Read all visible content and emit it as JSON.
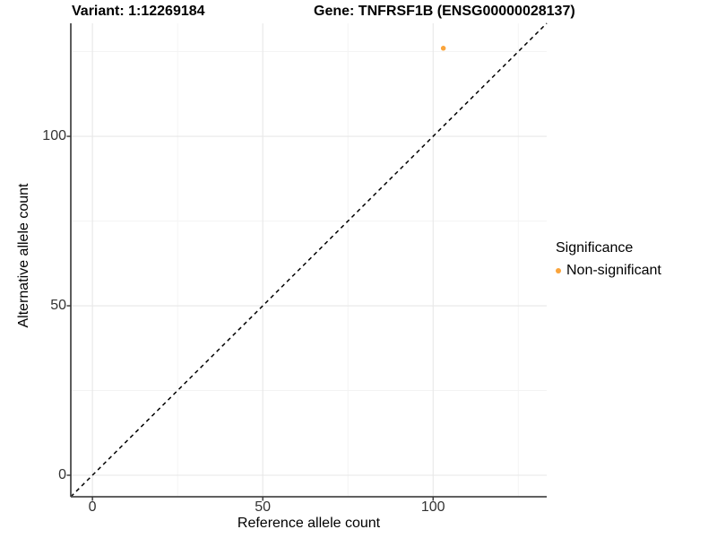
{
  "chart_data": {
    "type": "scatter",
    "titles": {
      "variant": "Variant: 1:12269184",
      "gene": "Gene: TNFRSF1B (ENSG00000028137)"
    },
    "xlabel": "Reference allele count",
    "ylabel": "Alternative allele count",
    "xlim": [
      -6.35,
      133.35
    ],
    "ylim": [
      -6.35,
      133.35
    ],
    "x_ticks": [
      0,
      50,
      100
    ],
    "y_ticks": [
      0,
      50,
      100
    ],
    "x_minor_ticks": [
      25,
      75,
      125
    ],
    "y_minor_ticks": [
      25,
      75,
      125
    ],
    "grid": true,
    "points": [
      {
        "x": 103,
        "y": 126,
        "series": "Non-significant"
      }
    ],
    "identity_line": {
      "slope": 1,
      "intercept": 0,
      "style": "dashed"
    },
    "legend": {
      "title": "Significance",
      "position": "right",
      "items": [
        {
          "label": "Non-significant",
          "color": "#FAA43B"
        }
      ]
    }
  },
  "colors": {
    "point": "#FAA43B",
    "grid_major": "#E7E7E7",
    "grid_minor": "#F3F3F3",
    "axis_line": "#4A4A4A",
    "tick_mark": "#333333",
    "identity_line": "#000000",
    "background": "#FFFFFF"
  }
}
